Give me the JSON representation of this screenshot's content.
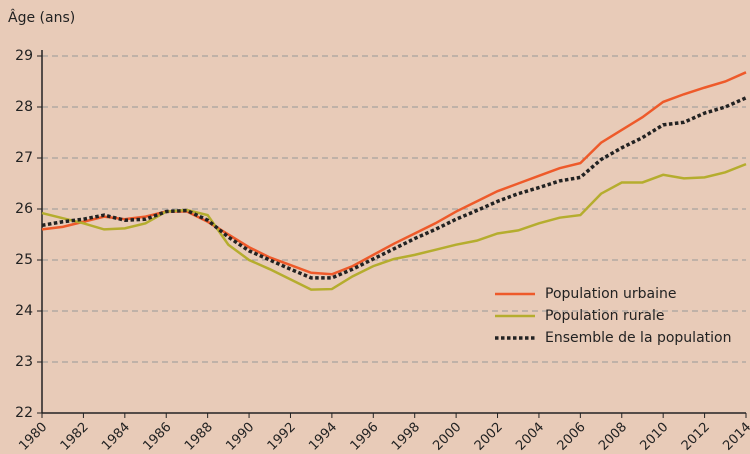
{
  "chart_data": {
    "type": "line",
    "y_label": "Âge (ans)",
    "x": [
      1980,
      1981,
      1982,
      1983,
      1984,
      1985,
      1986,
      1987,
      1988,
      1989,
      1990,
      1991,
      1992,
      1993,
      1994,
      1995,
      1996,
      1997,
      1998,
      1999,
      2000,
      2001,
      2002,
      2003,
      2004,
      2005,
      2006,
      2007,
      2008,
      2009,
      2010,
      2011,
      2012,
      2013,
      2014
    ],
    "series": [
      {
        "name": "Population urbaine",
        "color": "#ee5a2a",
        "linestyle": "solid",
        "values": [
          25.6,
          25.65,
          25.75,
          25.85,
          25.8,
          25.85,
          25.95,
          25.95,
          25.75,
          25.5,
          25.25,
          25.05,
          24.9,
          24.75,
          24.72,
          24.88,
          25.1,
          25.32,
          25.52,
          25.72,
          25.95,
          26.15,
          26.35,
          26.5,
          26.65,
          26.8,
          26.9,
          27.3,
          27.55,
          27.8,
          28.1,
          28.25,
          28.38,
          28.5,
          28.68
        ]
      },
      {
        "name": "Population rurale",
        "color": "#b5ad2e",
        "linestyle": "solid",
        "values": [
          25.92,
          25.82,
          25.72,
          25.6,
          25.62,
          25.72,
          25.95,
          25.98,
          25.88,
          25.3,
          25.0,
          24.82,
          24.62,
          24.42,
          24.43,
          24.68,
          24.88,
          25.02,
          25.1,
          25.2,
          25.3,
          25.38,
          25.52,
          25.58,
          25.72,
          25.83,
          25.88,
          26.3,
          26.52,
          26.52,
          26.67,
          26.6,
          26.62,
          26.72,
          26.88
        ]
      },
      {
        "name": "Ensemble de la population",
        "color": "#222222",
        "linestyle": "dotted",
        "values": [
          25.68,
          25.75,
          25.8,
          25.88,
          25.78,
          25.8,
          25.95,
          25.97,
          25.78,
          25.45,
          25.18,
          25.0,
          24.82,
          24.65,
          24.65,
          24.82,
          25.02,
          25.22,
          25.42,
          25.6,
          25.8,
          25.97,
          26.15,
          26.3,
          26.42,
          26.55,
          26.62,
          26.97,
          27.2,
          27.4,
          27.65,
          27.7,
          27.88,
          28.0,
          28.18
        ]
      }
    ],
    "xlim": [
      1980,
      2014
    ],
    "xticks": [
      1980,
      1982,
      1984,
      1986,
      1988,
      1990,
      1992,
      1994,
      1996,
      1998,
      2000,
      2002,
      2004,
      2006,
      2008,
      2010,
      2012,
      2014
    ],
    "ylim": [
      22,
      29
    ],
    "yticks": [
      22,
      23,
      24,
      25,
      26,
      27,
      28,
      29
    ],
    "grid": true,
    "legend": "lower right"
  }
}
